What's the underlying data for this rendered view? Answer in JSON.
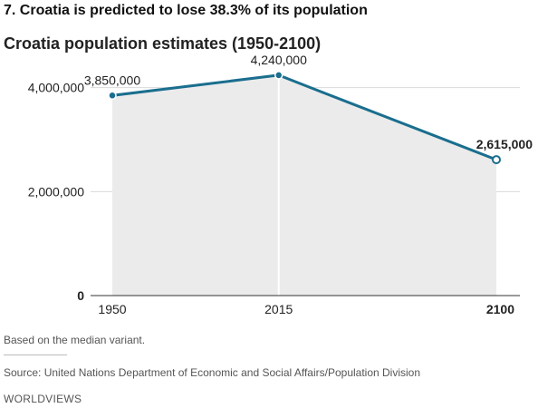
{
  "headline": "7. Croatia is predicted to lose 38.3% of its population",
  "note": "Based on the median variant.",
  "source": "Source: United Nations Department of Economic and Social Affairs/Population Division",
  "brand": "WORLDVIEWS",
  "colors": {
    "line": "#1a6e8e",
    "area": "#ebebeb",
    "grid": "#d9d9d9",
    "marker_line": "#ffffff"
  },
  "chart_data": {
    "type": "area",
    "title": "Croatia population estimates (1950-2100)",
    "xlabel": "",
    "ylabel": "",
    "xlim": [
      1950,
      2100
    ],
    "ylim": [
      0,
      4500000
    ],
    "grid": true,
    "x_ticks": [
      {
        "value": 1950,
        "label": "1950",
        "bold": false
      },
      {
        "value": 2015,
        "label": "2015",
        "bold": false
      },
      {
        "value": 2100,
        "label": "2100",
        "bold": true
      }
    ],
    "y_ticks": [
      {
        "value": 0,
        "label": "0",
        "bold": true
      },
      {
        "value": 2000000,
        "label": "2,000,000",
        "bold": false
      },
      {
        "value": 4000000,
        "label": "4,000,000",
        "bold": false
      }
    ],
    "series": [
      {
        "x": [
          1950,
          2015,
          2030,
          2100
        ],
        "y": [
          3850000,
          4240000,
          3950000,
          2615000
        ]
      }
    ],
    "annotations": [
      {
        "x": 1950,
        "y": 3850000,
        "label": "3,850,000",
        "bold": false,
        "marker": "filled"
      },
      {
        "x": 2015,
        "y": 4240000,
        "label": "4,240,000",
        "bold": false,
        "marker": "filled"
      },
      {
        "x": 2100,
        "y": 2615000,
        "label": "2,615,000",
        "bold": true,
        "marker": "hollow"
      }
    ]
  }
}
